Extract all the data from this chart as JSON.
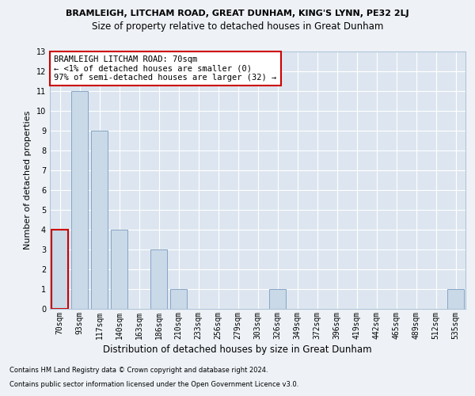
{
  "title": "BRAMLEIGH, LITCHAM ROAD, GREAT DUNHAM, KING'S LYNN, PE32 2LJ",
  "subtitle": "Size of property relative to detached houses in Great Dunham",
  "xlabel": "Distribution of detached houses by size in Great Dunham",
  "ylabel": "Number of detached properties",
  "categories": [
    "70sqm",
    "93sqm",
    "117sqm",
    "140sqm",
    "163sqm",
    "186sqm",
    "210sqm",
    "233sqm",
    "256sqm",
    "279sqm",
    "303sqm",
    "326sqm",
    "349sqm",
    "372sqm",
    "396sqm",
    "419sqm",
    "442sqm",
    "465sqm",
    "489sqm",
    "512sqm",
    "535sqm"
  ],
  "values": [
    4,
    11,
    9,
    4,
    0,
    3,
    1,
    0,
    0,
    0,
    0,
    1,
    0,
    0,
    0,
    0,
    0,
    0,
    0,
    0,
    1
  ],
  "bar_color": "#c9d9e8",
  "bar_edge_color": "#7a9bbf",
  "highlight_index": 0,
  "ylim": [
    0,
    13
  ],
  "yticks": [
    0,
    1,
    2,
    3,
    4,
    5,
    6,
    7,
    8,
    9,
    10,
    11,
    12,
    13
  ],
  "annotation_title": "BRAMLEIGH LITCHAM ROAD: 70sqm",
  "annotation_line1": "← <1% of detached houses are smaller (0)",
  "annotation_line2": "97% of semi-detached houses are larger (32) →",
  "footer1": "Contains HM Land Registry data © Crown copyright and database right 2024.",
  "footer2": "Contains public sector information licensed under the Open Government Licence v3.0.",
  "background_color": "#eef2f7",
  "plot_bg_color": "#dde6f0",
  "grid_color": "#ffffff",
  "annotation_box_color": "#cc0000",
  "title_fontsize": 8,
  "subtitle_fontsize": 8.5,
  "ylabel_fontsize": 8,
  "xlabel_fontsize": 8.5,
  "tick_fontsize": 7,
  "ann_fontsize": 7.5,
  "footer_fontsize": 6
}
